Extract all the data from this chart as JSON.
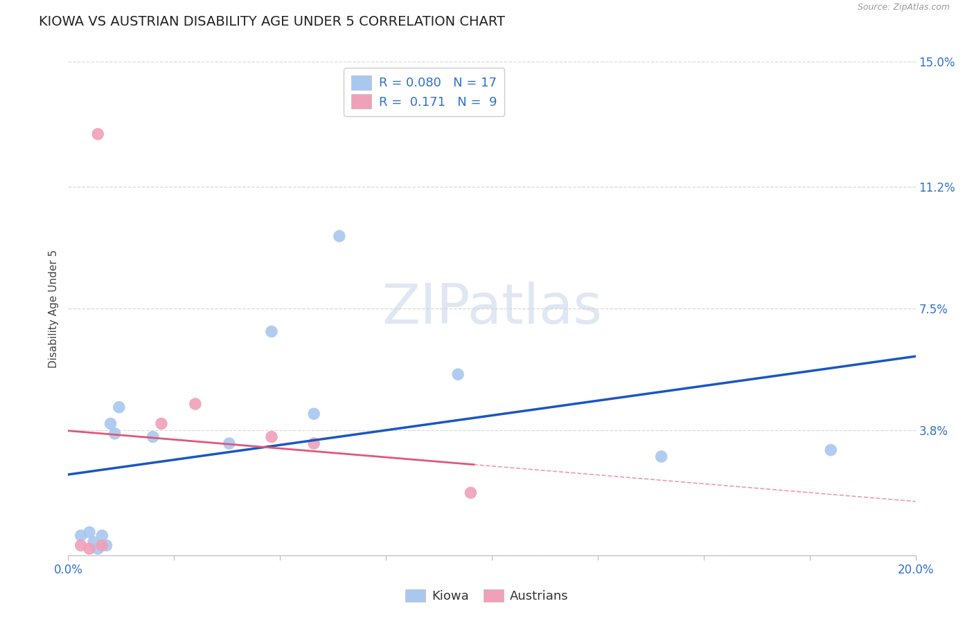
{
  "title": "KIOWA VS AUSTRIAN DISABILITY AGE UNDER 5 CORRELATION CHART",
  "source": "Source: ZipAtlas.com",
  "ylabel_label": "Disability Age Under 5",
  "x_min": 0.0,
  "x_max": 0.2,
  "y_min": 0.0,
  "y_max": 0.15,
  "x_ticks": [
    0.0,
    0.025,
    0.05,
    0.075,
    0.1,
    0.125,
    0.15,
    0.175,
    0.2
  ],
  "x_tick_labels_show": [
    "0.0%",
    "",
    "",
    "",
    "",
    "",
    "",
    "",
    "20.0%"
  ],
  "y_ticks": [
    0.0,
    0.038,
    0.075,
    0.112,
    0.15
  ],
  "y_tick_labels": [
    "",
    "3.8%",
    "7.5%",
    "11.2%",
    "15.0%"
  ],
  "kiowa_color": "#A8C8F0",
  "austrian_color": "#F0A0B8",
  "kiowa_line_color": "#1A56C4",
  "austrian_line_color": "#E05878",
  "R_kiowa": 0.08,
  "N_kiowa": 17,
  "R_austrian": 0.171,
  "N_austrian": 9,
  "background_color": "#FFFFFF",
  "grid_color": "#D8D8D8",
  "kiowa_x": [
    0.003,
    0.005,
    0.006,
    0.007,
    0.008,
    0.009,
    0.01,
    0.011,
    0.012,
    0.02,
    0.038,
    0.048,
    0.058,
    0.064,
    0.092,
    0.14,
    0.18
  ],
  "kiowa_y": [
    0.006,
    0.007,
    0.004,
    0.002,
    0.006,
    0.003,
    0.04,
    0.037,
    0.045,
    0.036,
    0.034,
    0.068,
    0.043,
    0.097,
    0.055,
    0.03,
    0.032
  ],
  "austrian_x": [
    0.003,
    0.005,
    0.007,
    0.008,
    0.022,
    0.03,
    0.048,
    0.058,
    0.095
  ],
  "austrian_y": [
    0.003,
    0.002,
    0.128,
    0.003,
    0.04,
    0.046,
    0.036,
    0.034,
    0.019
  ],
  "marker_size": 160,
  "title_fontsize": 14,
  "axis_label_fontsize": 11,
  "tick_fontsize": 12,
  "legend_fontsize": 13,
  "text_blue": "#3070D0",
  "legend_border_color": "#CCCCCC"
}
